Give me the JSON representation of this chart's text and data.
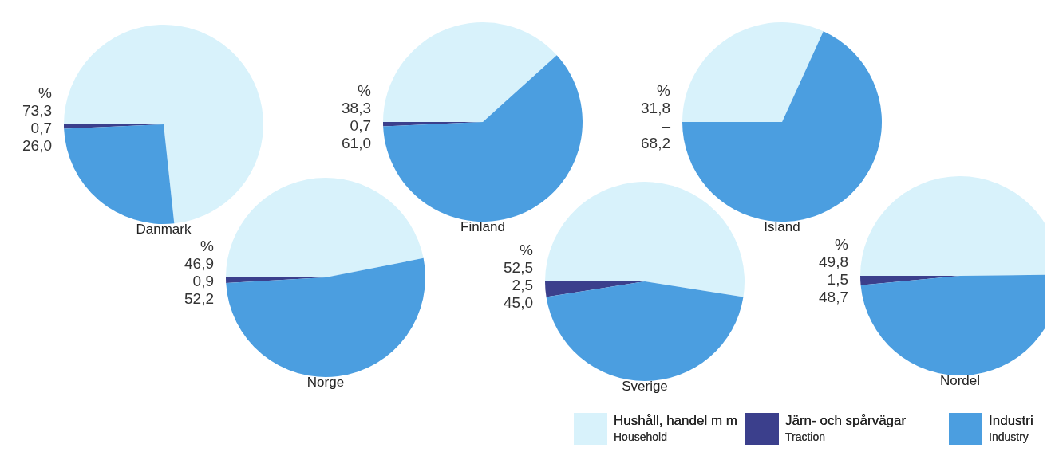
{
  "chart_data": [
    {
      "type": "pie",
      "title": "Danmark",
      "categories": [
        "Hushåll, handel m m\nHousehold",
        "Järn- och spårvägar\nTraction",
        "Industri\nIndustry"
      ],
      "values": [
        73.3,
        0.7,
        26.0
      ],
      "value_labels": [
        "73,3",
        "0,7",
        "26,0"
      ],
      "colors": [
        "#d8f2fb",
        "#3b3f8c",
        "#4b9ee0"
      ],
      "annotations": [
        "%"
      ],
      "legend": "bottom"
    },
    {
      "type": "pie",
      "title": "Finland",
      "categories": [
        null,
        null,
        null
      ],
      "values": [
        38.3,
        0.7,
        61.0
      ],
      "value_labels": [
        "38,3",
        "0,7",
        "61,0"
      ],
      "colors": [
        "#d8f2fb",
        "#3b3f8c",
        "#4b9ee0"
      ],
      "annotations": [
        "%"
      ]
    },
    {
      "type": "pie",
      "title": "Island",
      "categories": [
        null,
        null,
        null
      ],
      "values": [
        31.8,
        0,
        68.2
      ],
      "value_labels": [
        "31,8",
        "–",
        "68,2"
      ],
      "colors": [
        "#d8f2fb",
        "#3b3f8c",
        "#4b9ee0"
      ],
      "annotations": [
        "%"
      ]
    },
    {
      "type": "pie",
      "title": "Norge",
      "categories": [
        null,
        null,
        null
      ],
      "values": [
        46.9,
        0.9,
        52.2
      ],
      "value_labels": [
        "46,9",
        "0,9",
        "52,2"
      ],
      "colors": [
        "#d8f2fb",
        "#3b3f8c",
        "#4b9ee0"
      ],
      "annotations": [
        "%"
      ]
    },
    {
      "type": "pie",
      "title": "Sverige",
      "categories": [
        null,
        null,
        null
      ],
      "values": [
        52.5,
        2.5,
        45.0
      ],
      "value_labels": [
        "52,5",
        "2,5",
        "45,0"
      ],
      "colors": [
        "#d8f2fb",
        "#3b3f8c",
        "#4b9ee0"
      ],
      "annotations": [
        "%"
      ]
    },
    {
      "type": "pie",
      "title": "Nordel",
      "categories": [
        null,
        null,
        null
      ],
      "values": [
        49.8,
        1.5,
        48.7
      ],
      "value_labels": [
        "49,8",
        "1,5",
        "48,7"
      ],
      "colors": [
        "#d8f2fb",
        "#3b3f8c",
        "#4b9ee0"
      ],
      "annotations": [
        "%"
      ]
    }
  ]
}
